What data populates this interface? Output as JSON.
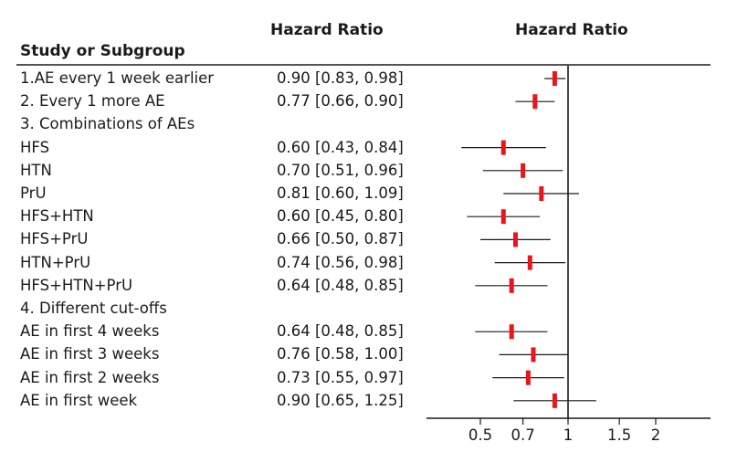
{
  "headers": {
    "study": "Study or Subgroup",
    "hazard_ratio_text": "Hazard Ratio",
    "hazard_ratio_plot": "Hazard Ratio"
  },
  "colors": {
    "point": "#e8151b",
    "ci_line": "#1a1a1a",
    "axis": "#1a1a1a"
  },
  "chart_data": {
    "type": "forest",
    "x_scale": "log",
    "reference_line": 1,
    "xlim": [
      0.38,
      3.1
    ],
    "x_ticks": [
      0.5,
      0.7,
      1,
      1.5,
      2
    ],
    "x_tick_labels": [
      "0.5",
      "0.7",
      "1",
      "1.5",
      "2"
    ],
    "rows": [
      {
        "label": "1.AE every 1 week earlier",
        "value_text": "0.90 [0.83, 0.98]",
        "hr": 0.9,
        "lo": 0.83,
        "hi": 0.98
      },
      {
        "label": "2. Every 1 more AE",
        "value_text": "0.77 [0.66, 0.90]",
        "hr": 0.77,
        "lo": 0.66,
        "hi": 0.9
      },
      {
        "label": "3. Combinations of AEs",
        "value_text": null,
        "hr": null,
        "lo": null,
        "hi": null
      },
      {
        "label": "HFS",
        "value_text": "0.60 [0.43, 0.84]",
        "hr": 0.6,
        "lo": 0.43,
        "hi": 0.84
      },
      {
        "label": "HTN",
        "value_text": "0.70 [0.51, 0.96]",
        "hr": 0.7,
        "lo": 0.51,
        "hi": 0.96
      },
      {
        "label": "PrU",
        "value_text": "0.81 [0.60, 1.09]",
        "hr": 0.81,
        "lo": 0.6,
        "hi": 1.09
      },
      {
        "label": "HFS+HTN",
        "value_text": "0.60 [0.45, 0.80]",
        "hr": 0.6,
        "lo": 0.45,
        "hi": 0.8
      },
      {
        "label": "HFS+PrU",
        "value_text": "0.66 [0.50, 0.87]",
        "hr": 0.66,
        "lo": 0.5,
        "hi": 0.87
      },
      {
        "label": "HTN+PrU",
        "value_text": "0.74 [0.56, 0.98]",
        "hr": 0.74,
        "lo": 0.56,
        "hi": 0.98
      },
      {
        "label": "HFS+HTN+PrU",
        "value_text": "0.64 [0.48, 0.85]",
        "hr": 0.64,
        "lo": 0.48,
        "hi": 0.85
      },
      {
        "label": "4. Different cut-offs",
        "value_text": null,
        "hr": null,
        "lo": null,
        "hi": null
      },
      {
        "label": "AE in first 4 weeks",
        "value_text": "0.64 [0.48, 0.85]",
        "hr": 0.64,
        "lo": 0.48,
        "hi": 0.85
      },
      {
        "label": "AE in first 3 weeks",
        "value_text": "0.76 [0.58, 1.00]",
        "hr": 0.76,
        "lo": 0.58,
        "hi": 1.0
      },
      {
        "label": "AE in first 2 weeks",
        "value_text": "0.73 [0.55, 0.97]",
        "hr": 0.73,
        "lo": 0.55,
        "hi": 0.97
      },
      {
        "label": "AE in first week",
        "value_text": "0.90 [0.65, 1.25]",
        "hr": 0.9,
        "lo": 0.65,
        "hi": 1.25
      }
    ]
  }
}
